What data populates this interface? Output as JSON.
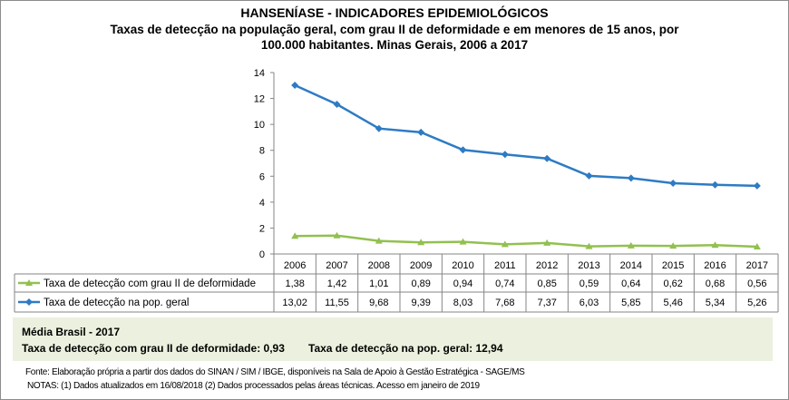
{
  "title": "HANSENÍASE - INDICADORES EPIDEMIOLÓGICOS",
  "subtitle_line1": "Taxas de detecção na população geral, com grau II de deformidade e em menores de 15 anos, por",
  "subtitle_line2": "100.000  habitantes. Minas Gerais, 2006 a 2017",
  "chart_data": {
    "type": "line",
    "title": "HANSENÍASE - INDICADORES EPIDEMIOLÓGICOS",
    "x": [
      "2006",
      "2007",
      "2008",
      "2009",
      "2010",
      "2011",
      "2012",
      "2013",
      "2014",
      "2015",
      "2016",
      "2017"
    ],
    "ylim": [
      0,
      14
    ],
    "yticks": [
      0,
      2,
      4,
      6,
      8,
      10,
      12,
      14
    ],
    "grid": false,
    "legend": "data-table",
    "series": [
      {
        "name": "Taxa de detecção com grau II de deformidade",
        "color": "#92c050",
        "marker": "triangle",
        "values": [
          1.38,
          1.42,
          1.01,
          0.89,
          0.94,
          0.74,
          0.85,
          0.59,
          0.64,
          0.62,
          0.68,
          0.56
        ],
        "labels": [
          "1,38",
          "1,42",
          "1,01",
          "0,89",
          "0,94",
          "0,74",
          "0,85",
          "0,59",
          "0,64",
          "0,62",
          "0,68",
          "0,56"
        ]
      },
      {
        "name": "Taxa de detecção na pop. geral",
        "color": "#2e7bc4",
        "marker": "diamond",
        "values": [
          13.02,
          11.55,
          9.68,
          9.39,
          8.03,
          7.68,
          7.37,
          6.03,
          5.85,
          5.46,
          5.34,
          5.26
        ],
        "labels": [
          "13,02",
          "11,55",
          "9,68",
          "9,39",
          "8,03",
          "7,68",
          "7,37",
          "6,03",
          "5,85",
          "5,46",
          "5,34",
          "5,26"
        ]
      }
    ]
  },
  "average": {
    "heading": "Média Brasil  - 2017",
    "grade2": "Taxa  de detecção com grau II de deformidade: 0,93",
    "general": "Taxa de detecção na pop. geral: 12,94"
  },
  "footer": {
    "source": "Fonte:  Elaboração própria a partir dos dados do  SINAN / SIM / IBGE, disponíveis na Sala de Apoio à Gestão Estratégica - SAGE/MS",
    "notes": "NOTAS: (1) Dados atualizados em 16/08/2018 (2) Dados processados pelas áreas técnicas. Acesso em janeiro de 2019"
  }
}
